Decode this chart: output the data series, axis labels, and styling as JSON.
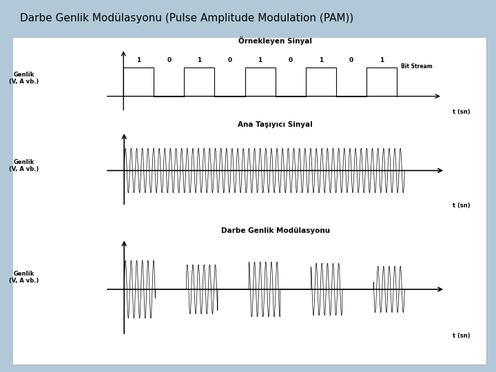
{
  "title": "Darbe Genlik Modülasyonu (Pulse Amplitude Modulation (PAM))",
  "title_fontsize": 11,
  "background_color": "#b0c8d8",
  "panel_background": "#ffffff",
  "bit_stream": [
    1,
    0,
    1,
    0,
    1,
    0,
    1,
    0,
    1
  ],
  "subplot1_title": "Örnekleyen Sinyal",
  "subplot2_title": "Ana Taşıyıcı Sinyal",
  "subplot3_title": "Darbe Genlik Modülasyonu",
  "ylabel": "Genlik\n(V, A vb.)",
  "xlabel": "t (sn)",
  "carrier_freq": 50,
  "num_bits": 9
}
